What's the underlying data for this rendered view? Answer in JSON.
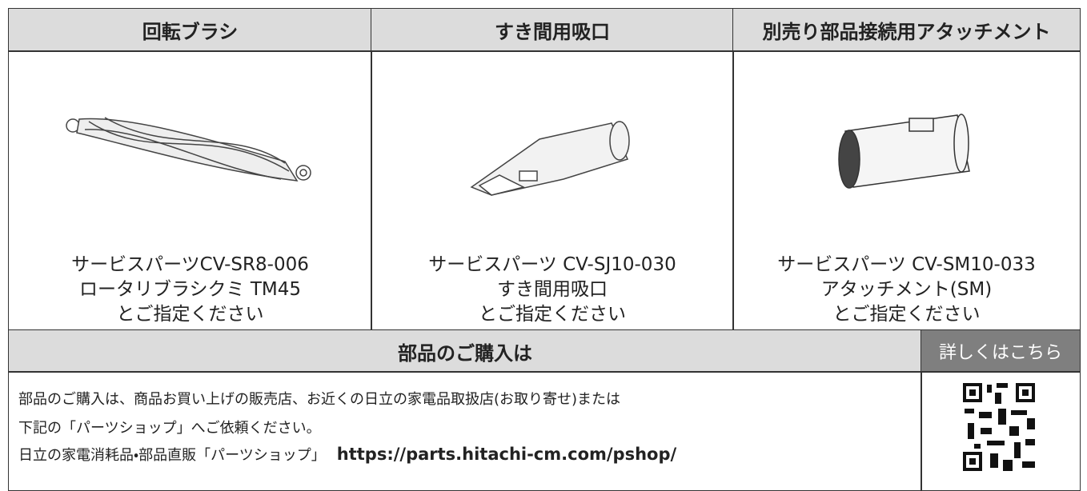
{
  "columns": [
    {
      "header": "回転ブラシ",
      "caption": [
        "サービスパーツCV-SR8-006",
        "ロータリブラシクミ TM45",
        "とご指定ください"
      ]
    },
    {
      "header": "すき間用吸口",
      "caption": [
        "サービスパーツ CV-SJ10-030",
        "すき間用吸口",
        "とご指定ください"
      ]
    },
    {
      "header": "別売り部品接続用アタッチメント",
      "caption": [
        "サービスパーツ CV-SM10-033",
        "アタッチメント(SM)",
        "とご指定ください"
      ]
    }
  ],
  "purchase": {
    "title": "部品のご購入は",
    "link": "詳しくはこちら",
    "lines": [
      "部品のご購入は、商品お買い上げの販売店、お近くの日立の家電品取扱店(お取り寄せ)または",
      "下記の「パーツショップ」へご依頼ください。",
      "日立の家電消耗品・部品直販「パーツショップ」"
    ],
    "url": "https://parts.hitachi-cm.com/pshop/"
  }
}
